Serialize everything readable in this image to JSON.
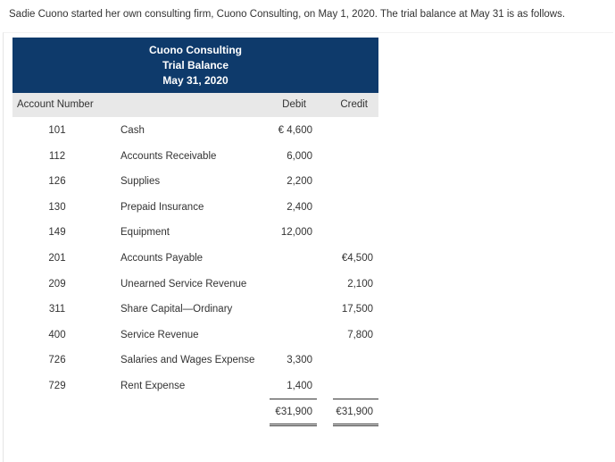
{
  "intro": "Sadie Cuono started her own consulting firm, Cuono Consulting, on May 1, 2020. The trial balance at May 31 is as follows.",
  "table": {
    "title": [
      "Cuono Consulting",
      "Trial Balance",
      "May 31, 2020"
    ],
    "columns": [
      "Account Number",
      "Debit",
      "Credit"
    ],
    "rows": [
      [
        "101",
        "Cash",
        "€ 4,600",
        null
      ],
      [
        "112",
        "Accounts Receivable",
        "6,000",
        null
      ],
      [
        "126",
        "Supplies",
        "2,200",
        null
      ],
      [
        "130",
        "Prepaid Insurance",
        "2,400",
        null
      ],
      [
        "149",
        "Equipment",
        "12,000",
        null
      ],
      [
        "201",
        "Accounts Payable",
        null,
        "€4,500"
      ],
      [
        "209",
        "Unearned Service Revenue",
        null,
        "2,100"
      ],
      [
        "311",
        "Share Capital—Ordinary",
        null,
        "17,500"
      ],
      [
        "400",
        "Service Revenue",
        null,
        "7,800"
      ],
      [
        "726",
        "Salaries and Wages Expense",
        "3,300",
        null
      ],
      [
        "729",
        "Rent Expense",
        "1,400",
        null
      ]
    ],
    "totals": [
      "€31,900",
      "€31,900"
    ]
  }
}
